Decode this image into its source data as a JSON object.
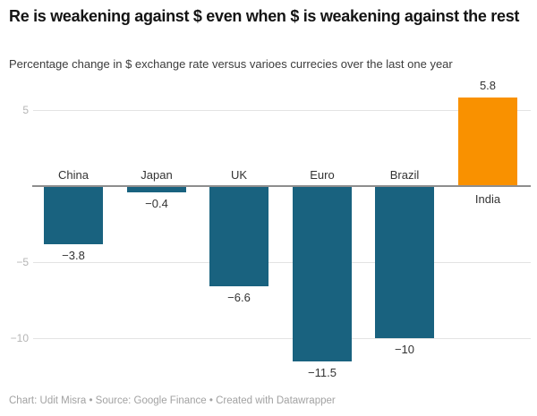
{
  "header": {
    "title": "Re is weakening against $ even when $ is weakening against the rest",
    "subtitle": "Percentage change in $ exchange rate versus varioes currecies over the last one year"
  },
  "footer": {
    "text": "Chart: Udit Misra • Source: Google Finance • Created with Datawrapper"
  },
  "colors": {
    "negative_bar": "#19627f",
    "positive_bar": "#f99100",
    "gridline": "#e3e3e3",
    "axis_line": "#8e8e8e",
    "tick_label": "#b5b5b5",
    "label_text": "#333333",
    "footer_text": "#a2a2a2"
  },
  "chart_data": {
    "type": "bar",
    "categories": [
      "China",
      "Japan",
      "UK",
      "Euro",
      "Brazil",
      "India"
    ],
    "values": [
      -3.8,
      -0.4,
      -6.6,
      -11.5,
      -10,
      5.8
    ],
    "value_labels": [
      "−3.8",
      "−0.4",
      "−6.6",
      "−11.5",
      "−10",
      "5.8"
    ],
    "title": "Re is weakening against $ even when $ is weakening against the rest",
    "subtitle": "Percentage change in $ exchange rate versus varioes currecies over the last one year",
    "xlabel": "",
    "ylabel": "",
    "ylim": [
      -12.5,
      6.5
    ],
    "yticks": [
      5,
      -5,
      -10
    ],
    "zero_baseline": true,
    "grid": true,
    "legend": false,
    "series_colors": {
      "negative": "#19627f",
      "positive": "#f99100"
    }
  }
}
